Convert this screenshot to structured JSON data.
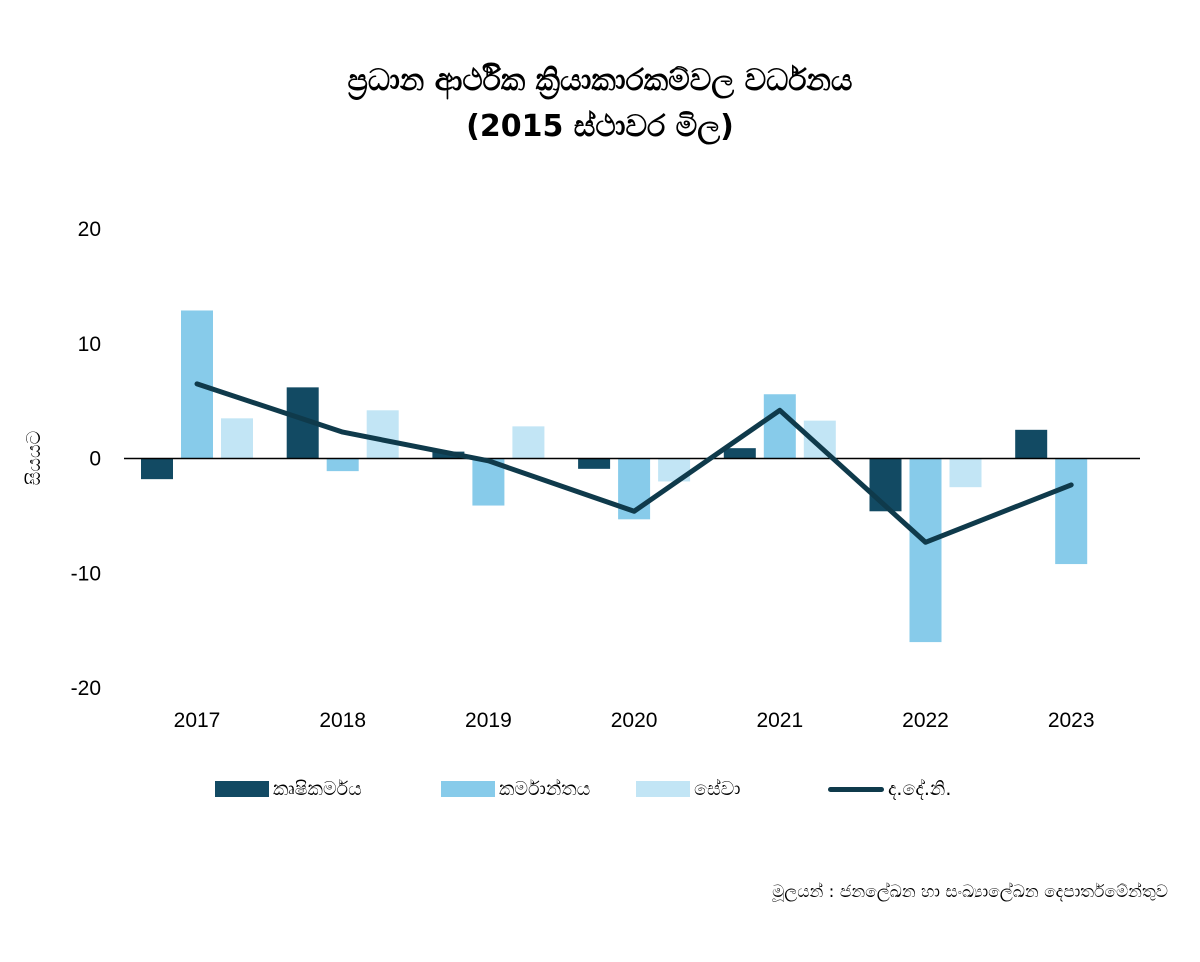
{
  "chart_data": {
    "type": "bar",
    "title_line1": "ප්‍රධාන ආර්ථික ක්‍රියාකාරකම්වල වර්ධනය",
    "title_line2": "(2015 ස්ථාවර මිල)",
    "ylabel": "සියයට",
    "xlabel": "",
    "ylim": [
      -20,
      20
    ],
    "yticks": [
      20,
      10,
      0,
      -10,
      -20
    ],
    "categories": [
      "2017",
      "2018",
      "2019",
      "2020",
      "2021",
      "2022",
      "2023"
    ],
    "series": [
      {
        "name": "කෘෂිකර්මය",
        "kind": "bar",
        "color": "#124a63",
        "values": [
          -1.8,
          6.2,
          0.6,
          -0.9,
          0.9,
          -4.6,
          2.5
        ]
      },
      {
        "name": "කර්මාන්තය",
        "kind": "bar",
        "color": "#87cbea",
        "values": [
          12.9,
          -1.1,
          -4.1,
          -5.3,
          5.6,
          -16.0,
          -9.2
        ]
      },
      {
        "name": "සේවා",
        "kind": "bar",
        "color": "#c2e5f5",
        "values": [
          3.5,
          4.2,
          2.8,
          -2.0,
          3.3,
          -2.5,
          0
        ]
      },
      {
        "name": "ද.දේ.නි.",
        "kind": "line",
        "color": "#0f3a4b",
        "values": [
          6.5,
          2.3,
          -0.2,
          -4.6,
          4.2,
          -7.3,
          -2.3
        ]
      }
    ],
    "legend_position": "bottom",
    "grid": false
  },
  "source": "මූලයන් : ජනලේඛන හා සංඛ්‍යාලේඛන දෙපාර්තමේන්තුව"
}
